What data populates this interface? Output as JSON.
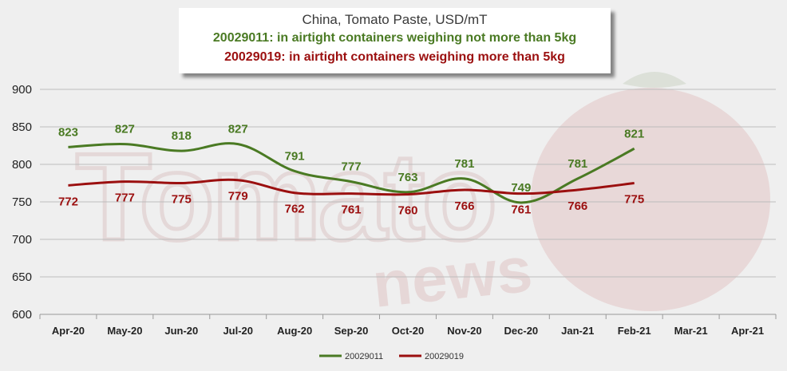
{
  "chart_data": {
    "type": "line",
    "title": "China, Tomato Paste, USD/mT",
    "subtitles": [
      {
        "text": "20029011: in airtight containers weighing not more than 5kg",
        "color": "#4a7a23"
      },
      {
        "text": "20029019: in airtight containers weighing more than 5kg",
        "color": "#9b0f0f"
      }
    ],
    "categories": [
      "Apr-20",
      "May-20",
      "Jun-20",
      "Jul-20",
      "Aug-20",
      "Sep-20",
      "Oct-20",
      "Nov-20",
      "Dec-20",
      "Jan-21",
      "Feb-21",
      "Mar-21",
      "Apr-21"
    ],
    "series": [
      {
        "name": "20029011",
        "color": "#4a7a23",
        "values": [
          823,
          827,
          818,
          827,
          791,
          777,
          763,
          781,
          749,
          781,
          821,
          null,
          null
        ]
      },
      {
        "name": "20029019",
        "color": "#9b0f0f",
        "values": [
          772,
          777,
          775,
          779,
          762,
          761,
          760,
          766,
          761,
          766,
          775,
          null,
          null
        ]
      }
    ],
    "ylim": [
      600,
      900
    ],
    "yticks": [
      600,
      650,
      700,
      750,
      800,
      850,
      900
    ],
    "grid": true,
    "legend": "bottom-center",
    "watermark": "Tomato News"
  }
}
